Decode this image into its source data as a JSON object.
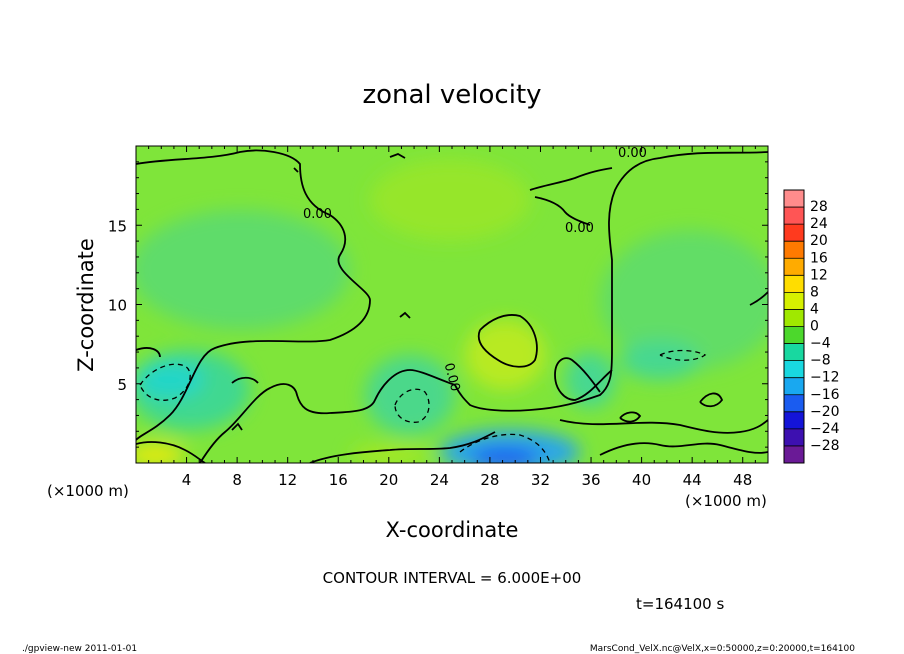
{
  "chart_data": {
    "type": "heatmap",
    "title": "zonal velocity",
    "xlabel": "X-coordinate",
    "ylabel": "Z-coordinate",
    "x_unit": "(×1000 m)",
    "z_unit": "(×1000 m)",
    "xlim": [
      0,
      50
    ],
    "ylim": [
      0,
      20
    ],
    "x_ticks": [
      "4",
      "8",
      "12",
      "16",
      "20",
      "24",
      "28",
      "32",
      "36",
      "40",
      "44",
      "48"
    ],
    "y_ticks": [
      "5",
      "10",
      "15"
    ],
    "colorbar": {
      "ticks": [
        "28",
        "24",
        "20",
        "16",
        "12",
        "8",
        "4",
        "0",
        "−4",
        "−8",
        "−12",
        "−16",
        "−20",
        "−24",
        "−28"
      ],
      "colors": [
        "#ff8c8c",
        "#ff5555",
        "#ff3a1e",
        "#ff7a00",
        "#ffab00",
        "#ffdd00",
        "#d6f000",
        "#a0e800",
        "#4cd82c",
        "#18d8a0",
        "#19d8e0",
        "#19a8f0",
        "#1a5cf0",
        "#1414d8",
        "#3d10b0",
        "#6a1a96"
      ]
    },
    "contour_labels": [
      "0.00",
      "0.00",
      "0.00",
      "0.00"
    ],
    "contour_interval": "CONTOUR INTERVAL = 6.000E+00",
    "time": "t=164100 s",
    "footer_left": "./gpview-new   2011-01-01",
    "footer_right": "MarsCond_VelX.nc@VelX,x=0:50000,z=0:20000,t=164100"
  }
}
